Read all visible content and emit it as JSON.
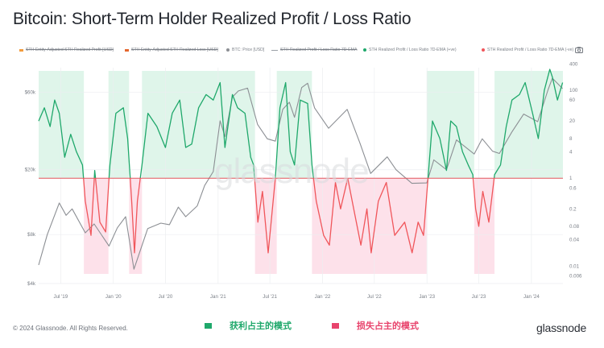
{
  "title": "Bitcoin: Short-Term Holder Realized Profit / Loss Ratio",
  "legend": [
    {
      "label": "STH Entity-Adjusted STH Realized Profit [USD]",
      "color": "#f39c3d",
      "hidden": true
    },
    {
      "label": "STH Entity-Adjusted STH Realized Loss [USD]",
      "color": "#e5672e",
      "hidden": true
    },
    {
      "label": "BTC: Price [USD]",
      "color": "#8c8f94",
      "hidden": false
    },
    {
      "label": "STH Realized Profit / Loss Ratio 7D-EMA",
      "color": "#9aa0a6",
      "hidden": true
    },
    {
      "label": "STH Realized Profit / Loss Ratio 7D-EMA (+ve)",
      "color": "#1fa86b",
      "hidden": false
    },
    {
      "label": "STH Realized Profit / Loss Ratio 7D-EMA (-ve)",
      "color": "#f0565b",
      "hidden": false
    }
  ],
  "watermark": "glassnode",
  "footer": {
    "copyright": "© 2024 Glassnode. All Rights Reserved.",
    "brand": "glassnode",
    "profit_mode": "获利占主的模式",
    "loss_mode": "损失占主的模式"
  },
  "colors": {
    "profit": "#1fa86b",
    "loss": "#f0565b",
    "profit_band": "#dff5ea",
    "loss_band": "#fde1ea",
    "price": "#8c8f94"
  },
  "chart_data": {
    "type": "line",
    "x_range": [
      "2019-04-15",
      "2024-04-20"
    ],
    "x_ticks": [
      "Jul '19",
      "Jan '20",
      "Jul '20",
      "Jan '21",
      "Jul '21",
      "Jan '22",
      "Jul '22",
      "Jan '23",
      "Jul '23",
      "Jan '24"
    ],
    "x_tick_dates": [
      "2019-07-01",
      "2020-01-01",
      "2020-07-01",
      "2021-01-01",
      "2021-07-01",
      "2022-01-01",
      "2022-07-01",
      "2023-01-01",
      "2023-07-01",
      "2024-01-01"
    ],
    "y_left": {
      "scale": "log",
      "ticks": [
        "$4k",
        "$8k",
        "$20k",
        "$60k"
      ],
      "tick_values": [
        4000,
        8000,
        20000,
        60000
      ],
      "range": [
        4000,
        95000
      ]
    },
    "y_right": {
      "scale": "log",
      "ticks": [
        "400",
        "100",
        "60",
        "20",
        "8",
        "4",
        "1",
        "0.6",
        "0.2",
        "0.08",
        "0.04",
        "0.01",
        "0.006"
      ],
      "tick_values": [
        400,
        100,
        60,
        20,
        8,
        4,
        1,
        0.6,
        0.2,
        0.08,
        0.04,
        0.01,
        0.006
      ],
      "range": [
        0.004,
        500
      ],
      "threshold": 1
    },
    "regimes": [
      {
        "start": "2019-04-15",
        "end": "2019-09-20",
        "mode": "profit"
      },
      {
        "start": "2019-09-20",
        "end": "2019-12-15",
        "mode": "loss"
      },
      {
        "start": "2019-12-15",
        "end": "2020-02-25",
        "mode": "profit"
      },
      {
        "start": "2020-02-25",
        "end": "2020-04-10",
        "mode": "loss"
      },
      {
        "start": "2020-04-10",
        "end": "2021-05-10",
        "mode": "profit"
      },
      {
        "start": "2021-05-10",
        "end": "2021-07-25",
        "mode": "loss"
      },
      {
        "start": "2021-07-25",
        "end": "2021-11-25",
        "mode": "profit"
      },
      {
        "start": "2021-11-25",
        "end": "2022-12-31",
        "mode": "loss"
      },
      {
        "start": "2022-12-31",
        "end": "2023-06-15",
        "mode": "profit"
      },
      {
        "start": "2023-06-15",
        "end": "2023-08-25",
        "mode": "loss"
      },
      {
        "start": "2023-08-25",
        "end": "2024-04-20",
        "mode": "profit"
      }
    ],
    "btc_price": [
      [
        "2019-04-15",
        5200
      ],
      [
        "2019-05-15",
        8000
      ],
      [
        "2019-06-26",
        12500
      ],
      [
        "2019-07-20",
        10500
      ],
      [
        "2019-08-10",
        11500
      ],
      [
        "2019-09-25",
        8200
      ],
      [
        "2019-10-26",
        9300
      ],
      [
        "2019-12-17",
        6800
      ],
      [
        "2020-01-15",
        8800
      ],
      [
        "2020-02-13",
        10300
      ],
      [
        "2020-03-13",
        4900
      ],
      [
        "2020-04-30",
        8700
      ],
      [
        "2020-06-15",
        9400
      ],
      [
        "2020-07-15",
        9200
      ],
      [
        "2020-08-15",
        11800
      ],
      [
        "2020-09-10",
        10300
      ],
      [
        "2020-10-20",
        12000
      ],
      [
        "2020-11-15",
        16000
      ],
      [
        "2020-12-15",
        19500
      ],
      [
        "2021-01-08",
        40000
      ],
      [
        "2021-01-25",
        32000
      ],
      [
        "2021-02-20",
        56000
      ],
      [
        "2021-03-13",
        61000
      ],
      [
        "2021-04-14",
        63500
      ],
      [
        "2021-05-19",
        38000
      ],
      [
        "2021-06-22",
        31000
      ],
      [
        "2021-07-20",
        30000
      ],
      [
        "2021-08-15",
        47000
      ],
      [
        "2021-09-07",
        52000
      ],
      [
        "2021-09-25",
        42000
      ],
      [
        "2021-10-20",
        64000
      ],
      [
        "2021-11-10",
        68000
      ],
      [
        "2021-12-04",
        48000
      ],
      [
        "2022-01-22",
        36000
      ],
      [
        "2022-03-28",
        47000
      ],
      [
        "2022-05-12",
        29000
      ],
      [
        "2022-06-18",
        19000
      ],
      [
        "2022-08-15",
        24000
      ],
      [
        "2022-09-15",
        20000
      ],
      [
        "2022-11-09",
        16500
      ],
      [
        "2022-12-31",
        16600
      ],
      [
        "2023-01-25",
        23000
      ],
      [
        "2023-03-10",
        20000
      ],
      [
        "2023-04-14",
        30500
      ],
      [
        "2023-06-15",
        25000
      ],
      [
        "2023-07-13",
        31000
      ],
      [
        "2023-08-18",
        26000
      ],
      [
        "2023-09-11",
        25200
      ],
      [
        "2023-10-24",
        34000
      ],
      [
        "2023-12-05",
        44000
      ],
      [
        "2024-01-23",
        39500
      ],
      [
        "2024-02-28",
        62000
      ],
      [
        "2024-03-14",
        73000
      ],
      [
        "2024-04-19",
        63000
      ]
    ],
    "sth_ratio": [
      [
        "2019-04-15",
        20
      ],
      [
        "2019-05-05",
        40
      ],
      [
        "2019-05-25",
        15
      ],
      [
        "2019-06-10",
        60
      ],
      [
        "2019-06-26",
        30
      ],
      [
        "2019-07-15",
        3
      ],
      [
        "2019-08-05",
        10
      ],
      [
        "2019-08-25",
        4
      ],
      [
        "2019-09-15",
        2
      ],
      [
        "2019-09-25",
        0.3
      ],
      [
        "2019-10-15",
        0.05
      ],
      [
        "2019-10-28",
        1.5
      ],
      [
        "2019-11-15",
        0.1
      ],
      [
        "2019-12-05",
        0.06
      ],
      [
        "2019-12-20",
        2
      ],
      [
        "2020-01-10",
        30
      ],
      [
        "2020-02-05",
        40
      ],
      [
        "2020-02-20",
        8
      ],
      [
        "2020-03-05",
        0.3
      ],
      [
        "2020-03-15",
        0.02
      ],
      [
        "2020-03-25",
        0.3
      ],
      [
        "2020-04-10",
        2
      ],
      [
        "2020-05-01",
        30
      ],
      [
        "2020-06-01",
        15
      ],
      [
        "2020-07-01",
        5
      ],
      [
        "2020-07-25",
        30
      ],
      [
        "2020-08-20",
        60
      ],
      [
        "2020-09-10",
        5
      ],
      [
        "2020-10-01",
        6
      ],
      [
        "2020-10-25",
        40
      ],
      [
        "2020-11-20",
        80
      ],
      [
        "2020-12-15",
        60
      ],
      [
        "2021-01-08",
        150
      ],
      [
        "2021-01-25",
        5
      ],
      [
        "2021-02-20",
        80
      ],
      [
        "2021-03-10",
        40
      ],
      [
        "2021-04-05",
        30
      ],
      [
        "2021-04-25",
        3
      ],
      [
        "2021-05-05",
        2
      ],
      [
        "2021-05-20",
        0.1
      ],
      [
        "2021-06-05",
        0.5
      ],
      [
        "2021-06-25",
        0.02
      ],
      [
        "2021-07-20",
        1
      ],
      [
        "2021-08-05",
        40
      ],
      [
        "2021-08-25",
        150
      ],
      [
        "2021-09-10",
        4
      ],
      [
        "2021-09-25",
        2
      ],
      [
        "2021-10-15",
        60
      ],
      [
        "2021-11-10",
        50
      ],
      [
        "2021-11-25",
        2
      ],
      [
        "2021-12-10",
        0.3
      ],
      [
        "2022-01-05",
        0.05
      ],
      [
        "2022-01-25",
        0.03
      ],
      [
        "2022-02-15",
        0.8
      ],
      [
        "2022-03-05",
        0.2
      ],
      [
        "2022-03-30",
        1
      ],
      [
        "2022-04-20",
        0.2
      ],
      [
        "2022-05-15",
        0.03
      ],
      [
        "2022-06-05",
        0.2
      ],
      [
        "2022-06-20",
        0.02
      ],
      [
        "2022-07-15",
        0.3
      ],
      [
        "2022-08-12",
        0.8
      ],
      [
        "2022-09-10",
        0.05
      ],
      [
        "2022-10-15",
        0.1
      ],
      [
        "2022-11-10",
        0.02
      ],
      [
        "2022-12-01",
        0.1
      ],
      [
        "2022-12-20",
        0.05
      ],
      [
        "2023-01-20",
        20
      ],
      [
        "2023-02-15",
        8
      ],
      [
        "2023-03-10",
        1.5
      ],
      [
        "2023-03-25",
        20
      ],
      [
        "2023-04-14",
        15
      ],
      [
        "2023-05-05",
        4
      ],
      [
        "2023-05-25",
        2
      ],
      [
        "2023-06-10",
        1.2
      ],
      [
        "2023-06-20",
        0.2
      ],
      [
        "2023-07-01",
        0.08
      ],
      [
        "2023-07-15",
        0.5
      ],
      [
        "2023-08-05",
        0.1
      ],
      [
        "2023-08-25",
        1.2
      ],
      [
        "2023-09-15",
        2
      ],
      [
        "2023-10-05",
        15
      ],
      [
        "2023-10-25",
        60
      ],
      [
        "2023-11-20",
        80
      ],
      [
        "2023-12-10",
        150
      ],
      [
        "2024-01-05",
        30
      ],
      [
        "2024-01-25",
        8
      ],
      [
        "2024-02-15",
        100
      ],
      [
        "2024-03-05",
        300
      ],
      [
        "2024-03-14",
        200
      ],
      [
        "2024-04-01",
        60
      ],
      [
        "2024-04-19",
        150
      ]
    ]
  }
}
